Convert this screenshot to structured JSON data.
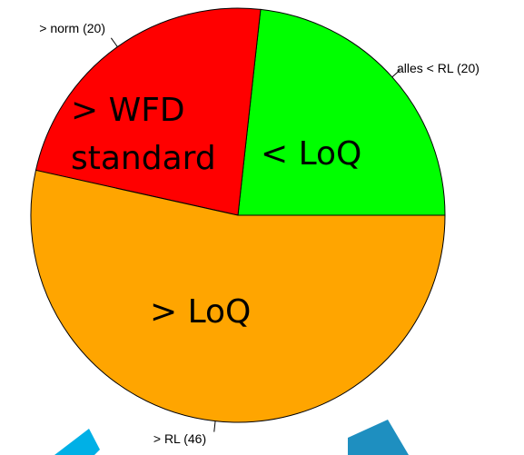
{
  "chart_data": {
    "type": "pie",
    "slices": [
      {
        "label": "alles < RL (20)",
        "value": 20,
        "color": "#00ff00",
        "overlay_label": "< LoQ"
      },
      {
        "label": "> norm (20)",
        "value": 20,
        "color": "#ff0000",
        "overlay_label": "> WFD standard"
      },
      {
        "label": "> RL (46)",
        "value": 46,
        "color": "#ffa500",
        "overlay_label": "> LoQ"
      }
    ],
    "start_angle_deg": 0,
    "direction": "counterclockwise",
    "border_color": "#000000"
  },
  "overlay_labels": {
    "wfd_line1": "> WFD",
    "wfd_line2": "standard",
    "loq_less": "< LoQ",
    "loq_greater": "> LoQ"
  },
  "decor": {
    "left_shape_color": "#00b0e6",
    "right_shape_color": "#1e8fc0"
  }
}
